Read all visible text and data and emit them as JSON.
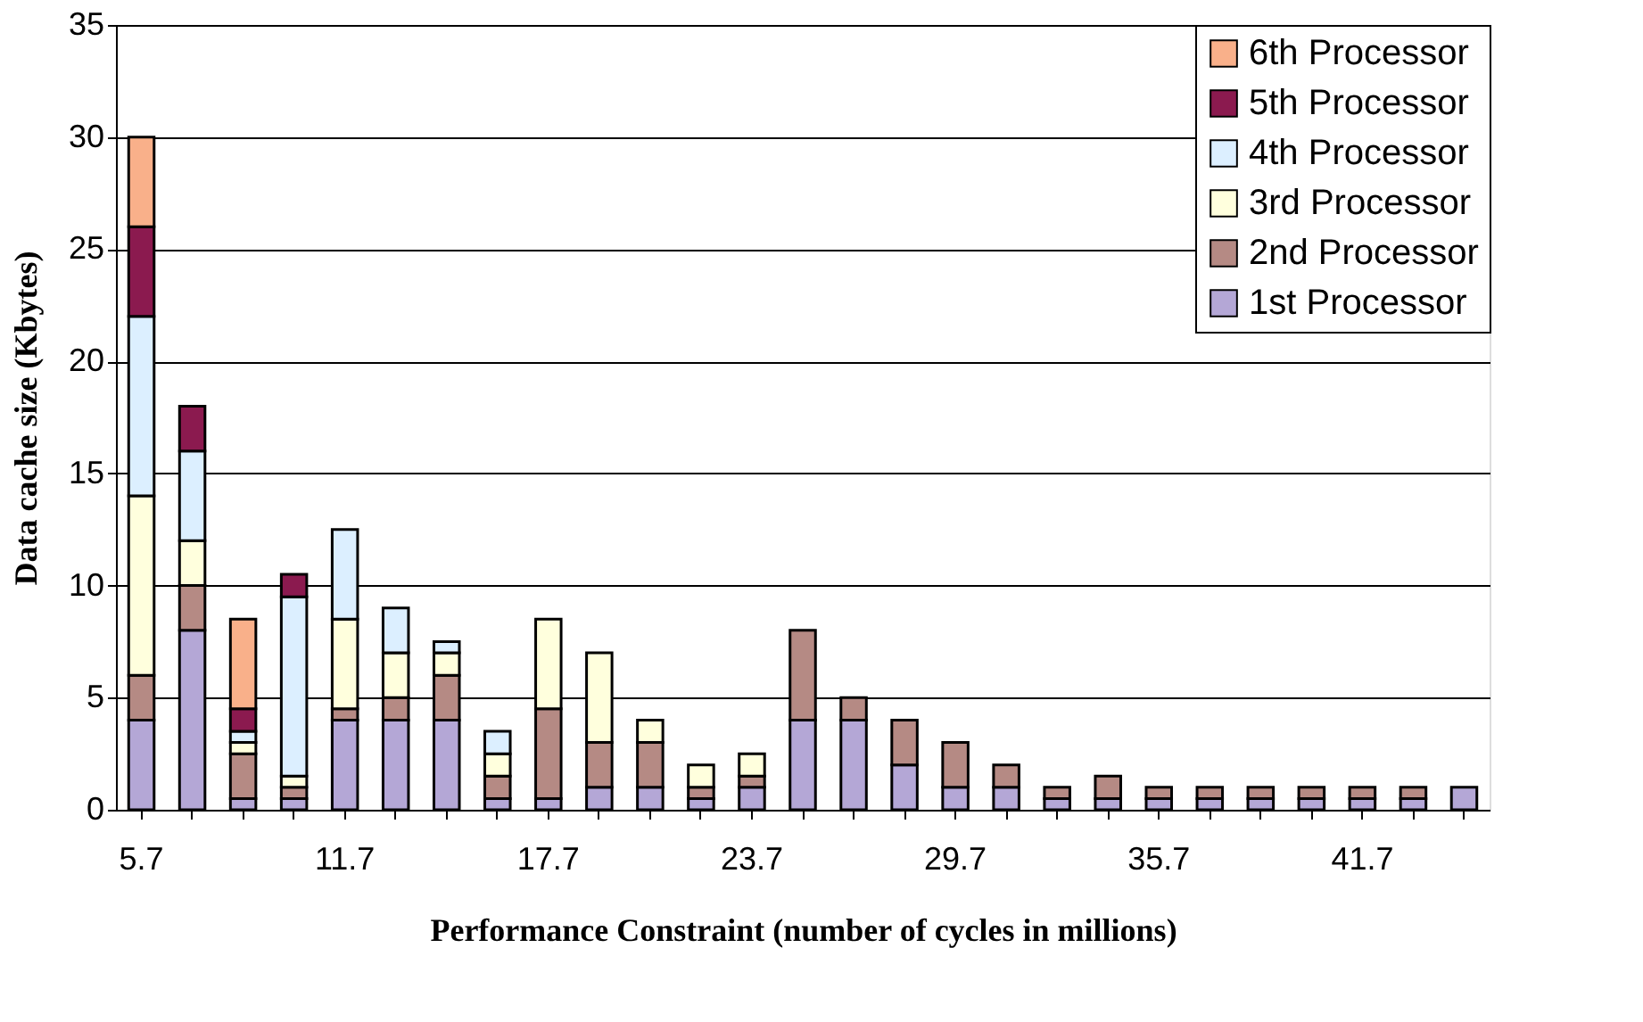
{
  "chart_data": {
    "type": "bar",
    "stacked": true,
    "xlabel": "Performance Constraint (number of cycles in millions)",
    "ylabel": "Data cache size (Kbytes)",
    "categories": [
      "5.7",
      null,
      null,
      null,
      "11.7",
      null,
      null,
      null,
      "17.7",
      null,
      null,
      null,
      "23.7",
      null,
      null,
      null,
      "29.7",
      null,
      null,
      null,
      "35.7",
      null,
      null,
      null,
      "41.7",
      null,
      null
    ],
    "ylim": [
      0,
      35
    ],
    "yticks": [
      0,
      5,
      10,
      15,
      20,
      25,
      30,
      35
    ],
    "grid": "y",
    "legend": "top right",
    "series": [
      {
        "name": "1st Processor",
        "color": "#b4a7d6",
        "values": [
          4,
          8,
          0.5,
          0.5,
          4,
          4,
          4,
          0.5,
          0.5,
          1,
          1,
          0.5,
          1,
          4,
          4,
          2,
          1,
          1,
          0.5,
          0.5,
          0.5,
          0.5,
          0.5,
          0.5,
          0.5,
          0.5,
          1
        ]
      },
      {
        "name": "2nd Processor",
        "color": "#b58a84",
        "values": [
          2,
          2,
          2,
          0.5,
          0.5,
          1,
          2,
          1,
          4,
          2,
          2,
          0.5,
          0.5,
          4,
          1,
          2,
          2,
          1,
          0.5,
          1,
          0.5,
          0.5,
          0.5,
          0.5,
          0.5,
          0.5,
          null
        ]
      },
      {
        "name": "3rd Processor",
        "color": "#ffffdd",
        "values": [
          8,
          2,
          0.5,
          0.5,
          4,
          2,
          1,
          1,
          4,
          4,
          1,
          1,
          1,
          null,
          null,
          null,
          null,
          null,
          null,
          null,
          null,
          null,
          null,
          null,
          null,
          null,
          null
        ]
      },
      {
        "name": "4th Processor",
        "color": "#dcefff",
        "values": [
          8,
          4,
          0.5,
          8,
          4,
          2,
          0.5,
          1,
          null,
          null,
          null,
          null,
          null,
          null,
          null,
          null,
          null,
          null,
          null,
          null,
          null,
          null,
          null,
          null,
          null,
          null,
          null
        ]
      },
      {
        "name": "5th Processor",
        "color": "#8b1a4f",
        "values": [
          4,
          2,
          1,
          1,
          null,
          null,
          null,
          null,
          null,
          null,
          null,
          null,
          null,
          null,
          null,
          null,
          null,
          null,
          null,
          null,
          null,
          null,
          null,
          null,
          null,
          null,
          null
        ]
      },
      {
        "name": "6th Processor",
        "color": "#f9b08a",
        "values": [
          4,
          null,
          4,
          null,
          null,
          null,
          null,
          null,
          null,
          null,
          null,
          null,
          null,
          null,
          null,
          null,
          null,
          null,
          null,
          null,
          null,
          null,
          null,
          null,
          null,
          null,
          null
        ]
      }
    ]
  }
}
